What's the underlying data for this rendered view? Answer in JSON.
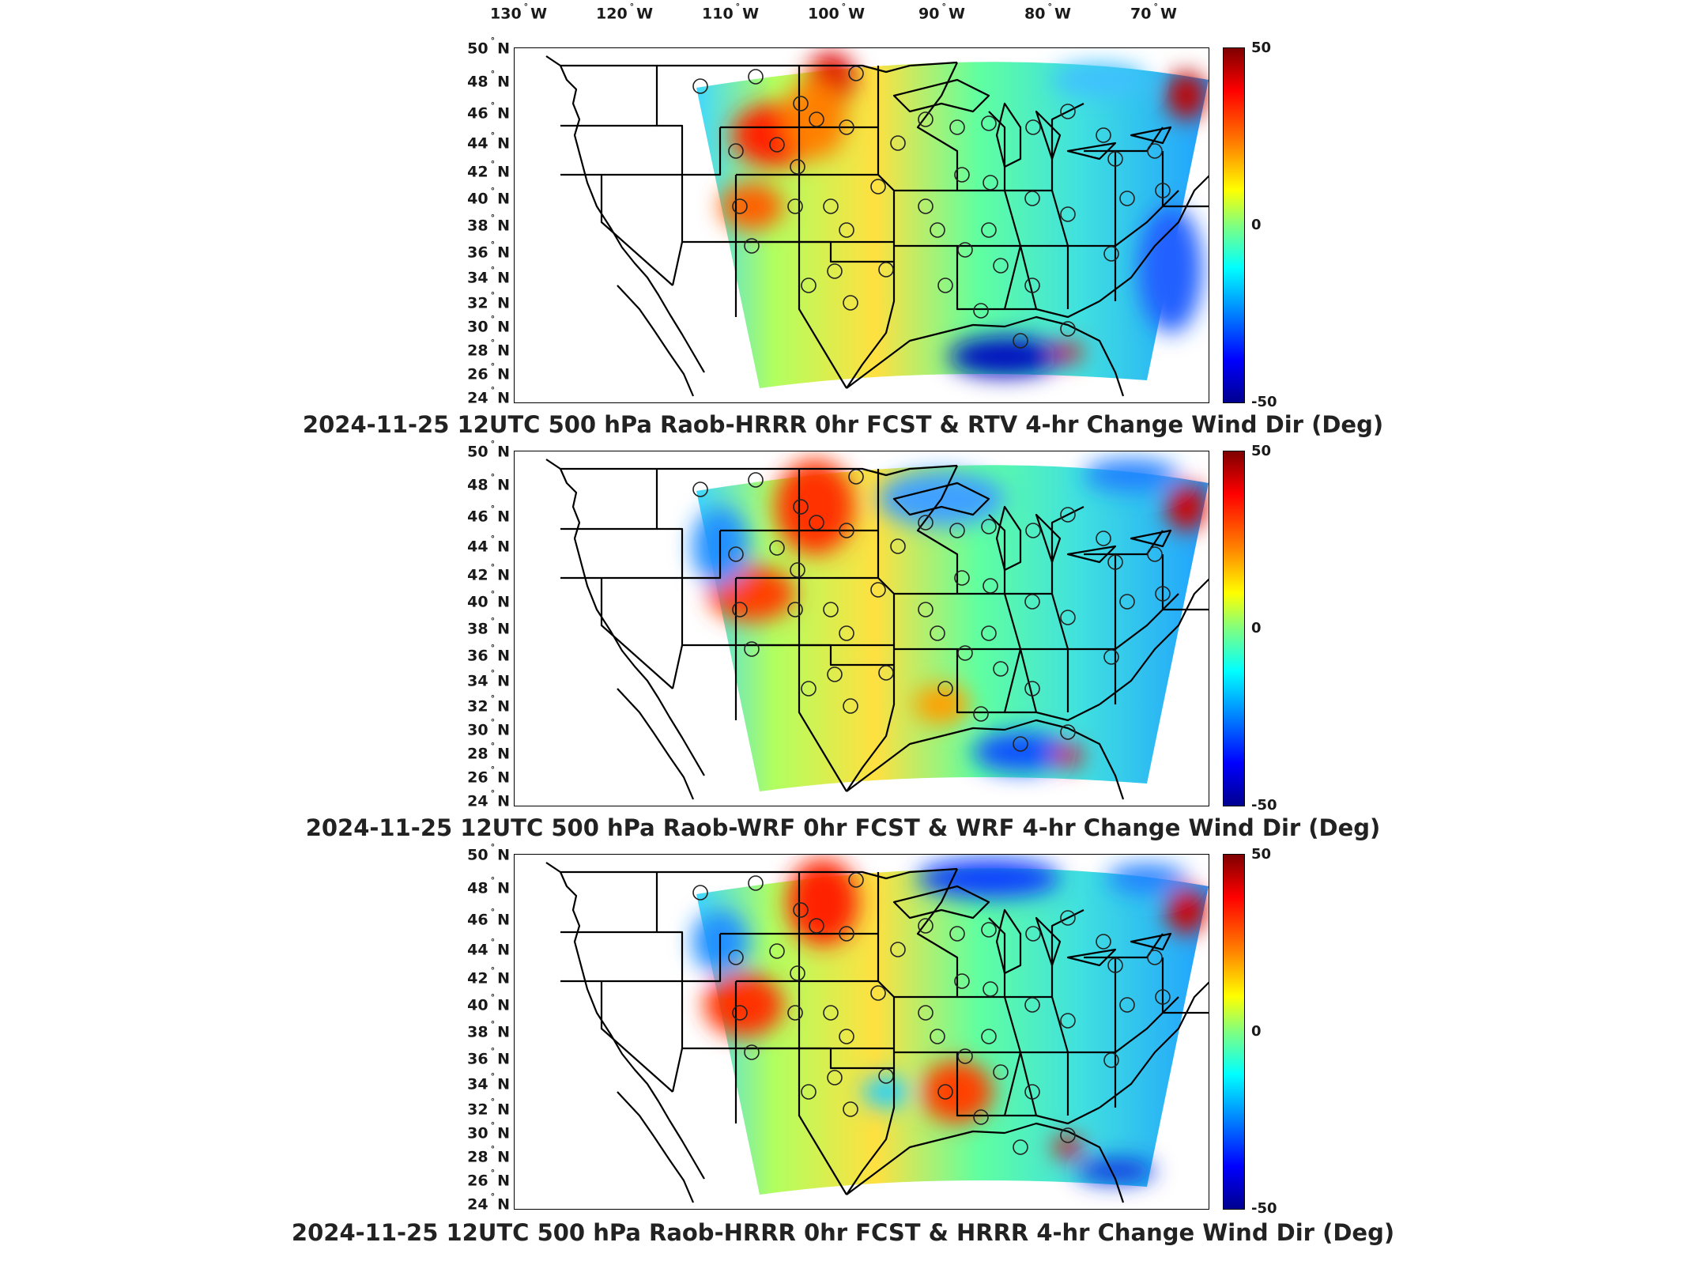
{
  "lon_labels": [
    "130",
    "120",
    "110",
    "100",
    "90",
    "80",
    "70"
  ],
  "lon_hemisphere": "W",
  "lat_labels": [
    "50",
    "48",
    "46",
    "44",
    "42",
    "40",
    "38",
    "36",
    "34",
    "32",
    "30",
    "28",
    "26",
    "24"
  ],
  "lat_hemisphere": "N",
  "colorbar": {
    "max": "50",
    "mid": "0",
    "min": "-50",
    "colors": [
      "#7f0000",
      "#ff0000",
      "#ff8000",
      "#ffff00",
      "#80ff80",
      "#00ffff",
      "#0080ff",
      "#0000ff",
      "#00008f"
    ]
  },
  "panels": [
    {
      "title": "2024-11-25 12UTC 500 hPa Raob-HRRR 0hr FCST & RTV 4-hr Change Wind Dir (Deg)"
    },
    {
      "title": "2024-11-25 12UTC 500 hPa Raob-WRF 0hr FCST & WRF 4-hr Change Wind Dir (Deg)"
    },
    {
      "title": "2024-11-25 12UTC 500 hPa Raob-HRRR 0hr FCST & HRRR 4-hr Change Wind Dir (Deg)"
    }
  ]
}
